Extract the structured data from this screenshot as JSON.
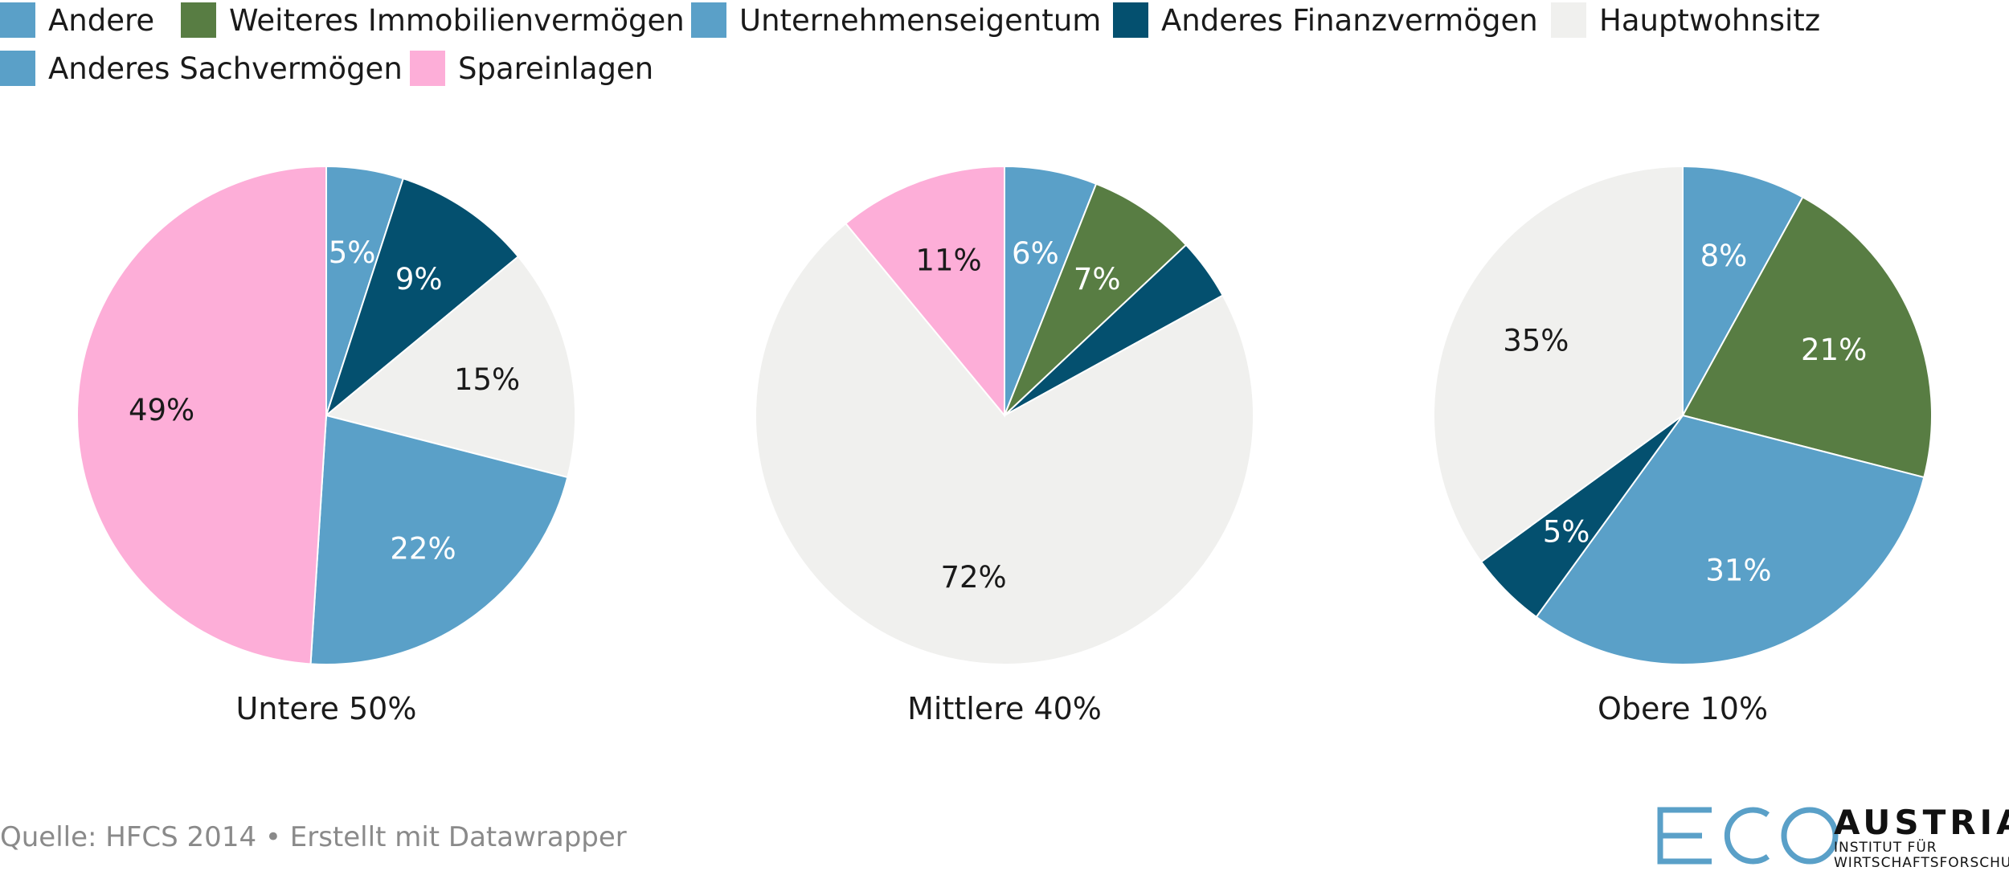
{
  "legend": [
    {
      "label": "Andere",
      "color": "#5aa0c8"
    },
    {
      "label": "Weiteres Immobilienvermögen",
      "color": "#587d43"
    },
    {
      "label": "Unternehmenseigentum",
      "color": "#5aa0c8"
    },
    {
      "label": "Anderes Finanzvermögen",
      "color": "#04506f"
    },
    {
      "label": "Hauptwohnsitz",
      "color": "#f0f0ee"
    },
    {
      "label": "Anderes Sachvermögen",
      "color": "#5aa0c8"
    },
    {
      "label": "Spareinlagen",
      "color": "#fdaed8"
    }
  ],
  "chart_data": [
    {
      "type": "pie",
      "title": "Untere 50%",
      "slices": [
        {
          "category": "Unternehmenseigentum",
          "value": 5,
          "label": "5%",
          "color": "#5aa0c8",
          "label_color": "#ffffff"
        },
        {
          "category": "Anderes Finanzvermögen",
          "value": 9,
          "label": "9%",
          "color": "#04506f",
          "label_color": "#ffffff"
        },
        {
          "category": "Hauptwohnsitz",
          "value": 15,
          "label": "15%",
          "color": "#f0f0ee",
          "label_color": "#1a1a1a"
        },
        {
          "category": "Anderes Sachvermögen",
          "value": 22,
          "label": "22%",
          "color": "#5aa0c8",
          "label_color": "#ffffff"
        },
        {
          "category": "Spareinlagen",
          "value": 49,
          "label": "49%",
          "color": "#fdaed8",
          "label_color": "#1a1a1a"
        }
      ]
    },
    {
      "type": "pie",
      "title": "Mittlere 40%",
      "slices": [
        {
          "category": "Unternehmenseigentum",
          "value": 6,
          "label": "6%",
          "color": "#5aa0c8",
          "label_color": "#ffffff"
        },
        {
          "category": "Weiteres Immobilienvermögen",
          "value": 7,
          "label": "7%",
          "color": "#587d43",
          "label_color": "#ffffff"
        },
        {
          "category": "Anderes Finanzvermögen",
          "value": 4,
          "label": "",
          "color": "#04506f",
          "label_color": "#ffffff"
        },
        {
          "category": "Hauptwohnsitz",
          "value": 72,
          "label": "72%",
          "color": "#f0f0ee",
          "label_color": "#1a1a1a"
        },
        {
          "category": "Spareinlagen",
          "value": 11,
          "label": "11%",
          "color": "#fdaed8",
          "label_color": "#1a1a1a"
        }
      ]
    },
    {
      "type": "pie",
      "title": "Obere 10%",
      "slices": [
        {
          "category": "Unternehmenseigentum",
          "value": 8,
          "label": "8%",
          "color": "#5aa0c8",
          "label_color": "#ffffff"
        },
        {
          "category": "Weiteres Immobilienvermögen",
          "value": 21,
          "label": "21%",
          "color": "#587d43",
          "label_color": "#ffffff"
        },
        {
          "category": "Anderes Sachvermögen",
          "value": 31,
          "label": "31%",
          "color": "#5aa0c8",
          "label_color": "#ffffff"
        },
        {
          "category": "Anderes Finanzvermögen",
          "value": 5,
          "label": "5%",
          "color": "#04506f",
          "label_color": "#ffffff"
        },
        {
          "category": "Hauptwohnsitz",
          "value": 35,
          "label": "35%",
          "color": "#f0f0ee",
          "label_color": "#1a1a1a"
        }
      ]
    }
  ],
  "footer": {
    "source": "Quelle: HFCS 2014 • Erstellt mit Datawrapper"
  },
  "logo": {
    "mark": "ECO",
    "name": "AUSTRIA",
    "line1": "INSTITUT FÜR",
    "line2": "WIRTSCHAFTSFORSCHUNG",
    "color": "#5aa0c8"
  }
}
